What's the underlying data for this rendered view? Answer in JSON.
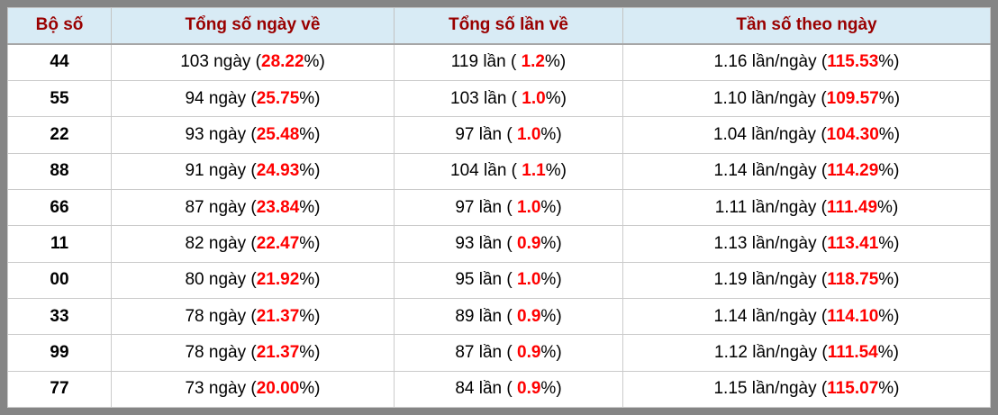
{
  "colors": {
    "header_bg": "#d8ebf5",
    "header_text": "#990000",
    "highlight_red": "#ff0000",
    "frame_gray": "#858585",
    "grid_line": "#cbcbcb"
  },
  "table": {
    "columns": [
      {
        "label": "Bộ số"
      },
      {
        "label": "Tổng số ngày về"
      },
      {
        "label": "Tổng số lần về"
      },
      {
        "label": "Tần số theo ngày"
      }
    ],
    "units": {
      "days_sep": " ngày (",
      "times_sep": " lần ( ",
      "freq_sep": " lần/ngày (",
      "pct_close": "%)"
    },
    "rows": [
      {
        "pair": "44",
        "days": "103",
        "days_pct": "28.22",
        "times": "119",
        "times_pct": "1.2",
        "freq": "1.16",
        "freq_pct": "115.53"
      },
      {
        "pair": "55",
        "days": "94",
        "days_pct": "25.75",
        "times": "103",
        "times_pct": "1.0",
        "freq": "1.10",
        "freq_pct": "109.57"
      },
      {
        "pair": "22",
        "days": "93",
        "days_pct": "25.48",
        "times": "97",
        "times_pct": "1.0",
        "freq": "1.04",
        "freq_pct": "104.30"
      },
      {
        "pair": "88",
        "days": "91",
        "days_pct": "24.93",
        "times": "104",
        "times_pct": "1.1",
        "freq": "1.14",
        "freq_pct": "114.29"
      },
      {
        "pair": "66",
        "days": "87",
        "days_pct": "23.84",
        "times": "97",
        "times_pct": "1.0",
        "freq": "1.11",
        "freq_pct": "111.49"
      },
      {
        "pair": "11",
        "days": "82",
        "days_pct": "22.47",
        "times": "93",
        "times_pct": "0.9",
        "freq": "1.13",
        "freq_pct": "113.41"
      },
      {
        "pair": "00",
        "days": "80",
        "days_pct": "21.92",
        "times": "95",
        "times_pct": "1.0",
        "freq": "1.19",
        "freq_pct": "118.75"
      },
      {
        "pair": "33",
        "days": "78",
        "days_pct": "21.37",
        "times": "89",
        "times_pct": "0.9",
        "freq": "1.14",
        "freq_pct": "114.10"
      },
      {
        "pair": "99",
        "days": "78",
        "days_pct": "21.37",
        "times": "87",
        "times_pct": "0.9",
        "freq": "1.12",
        "freq_pct": "111.54"
      },
      {
        "pair": "77",
        "days": "73",
        "days_pct": "20.00",
        "times": "84",
        "times_pct": "0.9",
        "freq": "1.15",
        "freq_pct": "115.07"
      }
    ]
  }
}
